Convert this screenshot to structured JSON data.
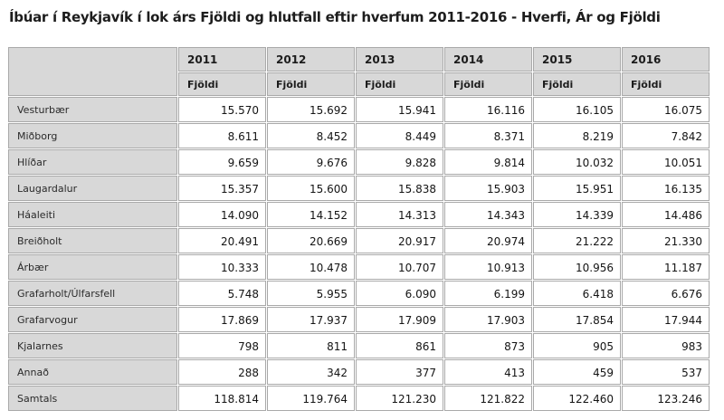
{
  "title": "Íbúar í Reykjavík í lok árs Fjöldi og hlutfall eftir hverfum 2011-2016 - Hverfi, Ár og Fjöldi",
  "table": {
    "corner_label": "",
    "years": [
      "2011",
      "2012",
      "2013",
      "2014",
      "2015",
      "2016"
    ],
    "measure_label": "Fjöldi",
    "rows": [
      {
        "label": "Vesturbær",
        "values": [
          "15.570",
          "15.692",
          "15.941",
          "16.116",
          "16.105",
          "16.075"
        ]
      },
      {
        "label": "Miðborg",
        "values": [
          "8.611",
          "8.452",
          "8.449",
          "8.371",
          "8.219",
          "7.842"
        ]
      },
      {
        "label": "Hlíðar",
        "values": [
          "9.659",
          "9.676",
          "9.828",
          "9.814",
          "10.032",
          "10.051"
        ]
      },
      {
        "label": "Laugardalur",
        "values": [
          "15.357",
          "15.600",
          "15.838",
          "15.903",
          "15.951",
          "16.135"
        ]
      },
      {
        "label": "Háaleiti",
        "values": [
          "14.090",
          "14.152",
          "14.313",
          "14.343",
          "14.339",
          "14.486"
        ]
      },
      {
        "label": "Breiðholt",
        "values": [
          "20.491",
          "20.669",
          "20.917",
          "20.974",
          "21.222",
          "21.330"
        ]
      },
      {
        "label": "Árbær",
        "values": [
          "10.333",
          "10.478",
          "10.707",
          "10.913",
          "10.956",
          "11.187"
        ]
      },
      {
        "label": "Grafarholt/Úlfarsfell",
        "values": [
          "5.748",
          "5.955",
          "6.090",
          "6.199",
          "6.418",
          "6.676"
        ]
      },
      {
        "label": "Grafarvogur",
        "values": [
          "17.869",
          "17.937",
          "17.909",
          "17.903",
          "17.854",
          "17.944"
        ]
      },
      {
        "label": "Kjalarnes",
        "values": [
          "798",
          "811",
          "861",
          "873",
          "905",
          "983"
        ]
      },
      {
        "label": "Annað",
        "values": [
          "288",
          "342",
          "377",
          "413",
          "459",
          "537"
        ]
      },
      {
        "label": "Samtals",
        "values": [
          "118.814",
          "119.764",
          "121.230",
          "121.822",
          "122.460",
          "123.246"
        ]
      }
    ]
  },
  "chart_data": {
    "type": "table",
    "title": "Íbúar í Reykjavík í lok árs Fjöldi og hlutfall eftir hverfum 2011-2016 - Hverfi, Ár og Fjöldi",
    "categories": [
      "2011",
      "2012",
      "2013",
      "2014",
      "2015",
      "2016"
    ],
    "unit": "Fjöldi",
    "series": [
      {
        "name": "Vesturbær",
        "values": [
          15570,
          15692,
          15941,
          16116,
          16105,
          16075
        ]
      },
      {
        "name": "Miðborg",
        "values": [
          8611,
          8452,
          8449,
          8371,
          8219,
          7842
        ]
      },
      {
        "name": "Hlíðar",
        "values": [
          9659,
          9676,
          9828,
          9814,
          10032,
          10051
        ]
      },
      {
        "name": "Laugardalur",
        "values": [
          15357,
          15600,
          15838,
          15903,
          15951,
          16135
        ]
      },
      {
        "name": "Háaleiti",
        "values": [
          14090,
          14152,
          14313,
          14343,
          14339,
          14486
        ]
      },
      {
        "name": "Breiðholt",
        "values": [
          20491,
          20669,
          20917,
          20974,
          21222,
          21330
        ]
      },
      {
        "name": "Árbær",
        "values": [
          10333,
          10478,
          10707,
          10913,
          10956,
          11187
        ]
      },
      {
        "name": "Grafarholt/Úlfarsfell",
        "values": [
          5748,
          5955,
          6090,
          6199,
          6418,
          6676
        ]
      },
      {
        "name": "Grafarvogur",
        "values": [
          17869,
          17937,
          17909,
          17903,
          17854,
          17944
        ]
      },
      {
        "name": "Kjalarnes",
        "values": [
          798,
          811,
          861,
          873,
          905,
          983
        ]
      },
      {
        "name": "Annað",
        "values": [
          288,
          342,
          377,
          413,
          459,
          537
        ]
      },
      {
        "name": "Samtals",
        "values": [
          118814,
          119764,
          121230,
          121822,
          122460,
          123246
        ]
      }
    ]
  },
  "colors": {
    "header_bg": "#d8d8d8",
    "row_label_bg": "#d8d8d8",
    "cell_border": "#a9a9a9",
    "value_text": "#141414",
    "title_text": "#1d1d1d",
    "page_bg": "#ffffff"
  }
}
